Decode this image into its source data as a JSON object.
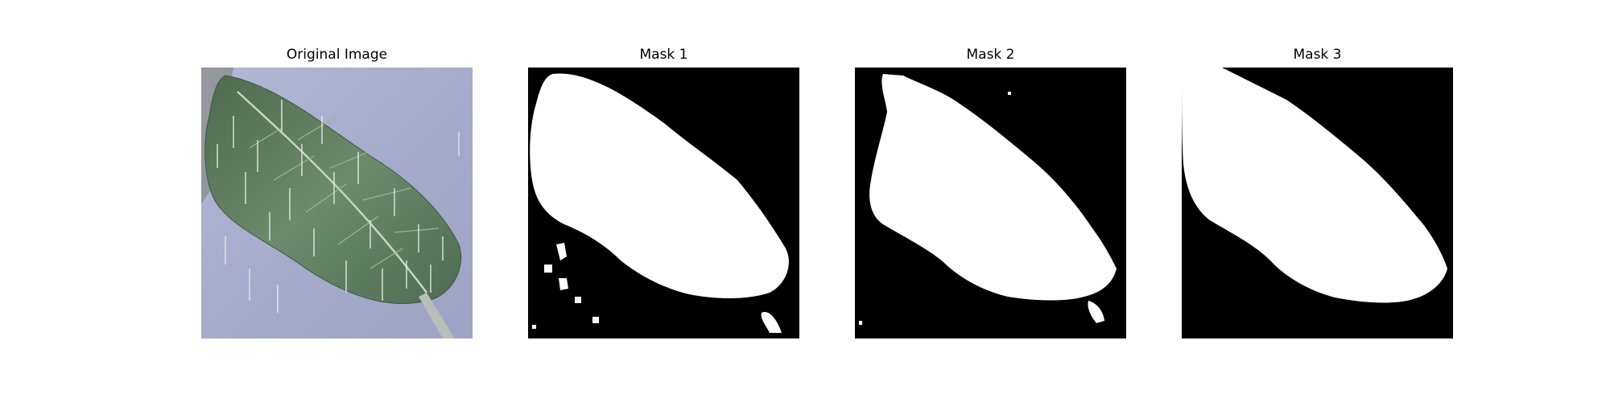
{
  "figure": {
    "panels": [
      {
        "title": "Original Image",
        "image_icon": "leaf-photo-icon"
      },
      {
        "title": "Mask 1",
        "image_icon": "mask-icon"
      },
      {
        "title": "Mask 2",
        "image_icon": "mask-icon"
      },
      {
        "title": "Mask 3",
        "image_icon": "mask-icon"
      }
    ]
  },
  "colors": {
    "mask_background": "#000000",
    "mask_foreground": "#ffffff",
    "leaf_green": "#5a7a5c",
    "background_lavender": "#a9aed0"
  }
}
